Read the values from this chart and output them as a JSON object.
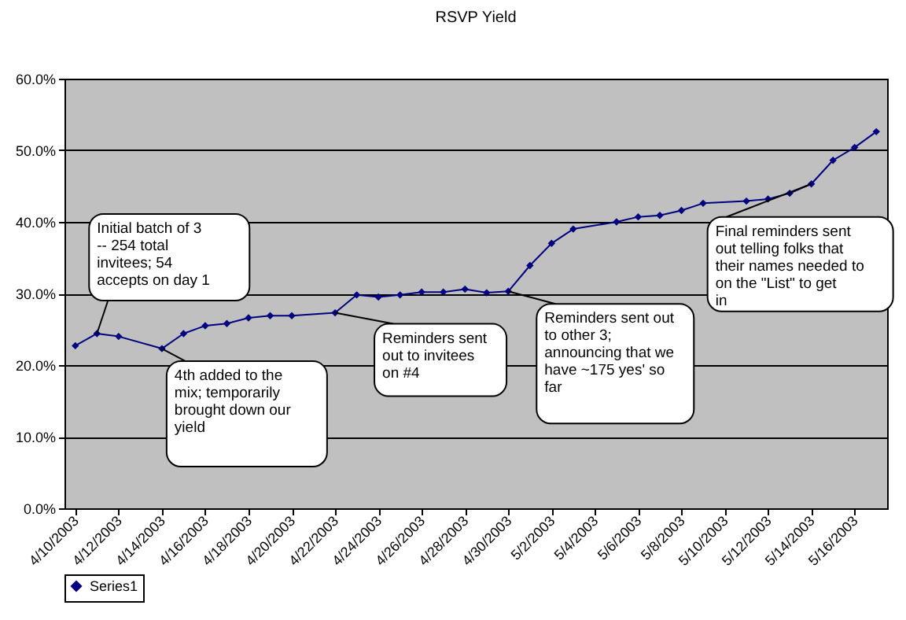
{
  "chart_data": {
    "type": "line",
    "title": "RSVP Yield",
    "x": [
      "2003-04-10",
      "2003-04-11",
      "2003-04-12",
      "2003-04-14",
      "2003-04-15",
      "2003-04-16",
      "2003-04-17",
      "2003-04-18",
      "2003-04-19",
      "2003-04-20",
      "2003-04-22",
      "2003-04-23",
      "2003-04-24",
      "2003-04-25",
      "2003-04-26",
      "2003-04-27",
      "2003-04-28",
      "2003-04-29",
      "2003-04-30",
      "2003-05-01",
      "2003-05-02",
      "2003-05-03",
      "2003-05-05",
      "2003-05-06",
      "2003-05-07",
      "2003-05-08",
      "2003-05-09",
      "2003-05-11",
      "2003-05-12",
      "2003-05-13",
      "2003-05-14",
      "2003-05-15",
      "2003-05-16",
      "2003-05-17"
    ],
    "series": [
      {
        "name": "Series1",
        "color": "#000080",
        "values": [
          22.7,
          24.4,
          24.0,
          22.3,
          24.4,
          25.5,
          25.8,
          26.6,
          26.9,
          26.9,
          27.3,
          29.8,
          29.5,
          29.8,
          30.2,
          30.2,
          30.6,
          30.1,
          30.3,
          33.9,
          37.0,
          39.0,
          40.0,
          40.7,
          40.9,
          41.6,
          42.6,
          42.9,
          43.2,
          44.0,
          45.3,
          48.6,
          50.4,
          52.6
        ]
      }
    ],
    "xlim": [
      "2003-04-09T12:00",
      "2003-05-17T12:00"
    ],
    "xticks": [
      {
        "value": "2003-04-10",
        "label": "4/10/2003"
      },
      {
        "value": "2003-04-12",
        "label": "4/12/2003"
      },
      {
        "value": "2003-04-14",
        "label": "4/14/2003"
      },
      {
        "value": "2003-04-16",
        "label": "4/16/2003"
      },
      {
        "value": "2003-04-18",
        "label": "4/18/2003"
      },
      {
        "value": "2003-04-20",
        "label": "4/20/2003"
      },
      {
        "value": "2003-04-22",
        "label": "4/22/2003"
      },
      {
        "value": "2003-04-24",
        "label": "4/24/2003"
      },
      {
        "value": "2003-04-26",
        "label": "4/26/2003"
      },
      {
        "value": "2003-04-28",
        "label": "4/28/2003"
      },
      {
        "value": "2003-04-30",
        "label": "4/30/2003"
      },
      {
        "value": "2003-05-02",
        "label": "5/2/2003"
      },
      {
        "value": "2003-05-04",
        "label": "5/4/2003"
      },
      {
        "value": "2003-05-06",
        "label": "5/6/2003"
      },
      {
        "value": "2003-05-08",
        "label": "5/8/2003"
      },
      {
        "value": "2003-05-10",
        "label": "5/10/2003"
      },
      {
        "value": "2003-05-12",
        "label": "5/12/2003"
      },
      {
        "value": "2003-05-14",
        "label": "5/14/2003"
      },
      {
        "value": "2003-05-16",
        "label": "5/16/2003"
      }
    ],
    "ylim": [
      0,
      60
    ],
    "yticks": [
      {
        "value": 0,
        "label": "0.0%"
      },
      {
        "value": 10,
        "label": "10.0%"
      },
      {
        "value": 20,
        "label": "20.0%"
      },
      {
        "value": 30,
        "label": "30.0%"
      },
      {
        "value": 40,
        "label": "40.0%"
      },
      {
        "value": 50,
        "label": "50.0%"
      },
      {
        "value": 60,
        "label": "60.0%"
      }
    ],
    "grid": "y",
    "legend": "bottom",
    "marker": "diamond",
    "line_style": "solid",
    "annotations": [
      {
        "text": "Initial batch of 3 -- 254 total invitees; 54 accepts on day 1",
        "x": "2003-04-11",
        "y": 24.4
      },
      {
        "text": "4th added to the mix; temporarily brought down our yield",
        "x": "2003-04-14",
        "y": 22.3
      },
      {
        "text": "Reminders sent out to invitees on #4",
        "x": "2003-04-22",
        "y": 27.3
      },
      {
        "text": "Reminders sent out to other 3; announcing that we have ~175 yes' so far",
        "x": "2003-04-30",
        "y": 30.3
      },
      {
        "text": "Final reminders sent out telling folks that their names needed to on the \"List\" to get in",
        "x": "2003-05-14",
        "y": 45.3
      }
    ]
  }
}
